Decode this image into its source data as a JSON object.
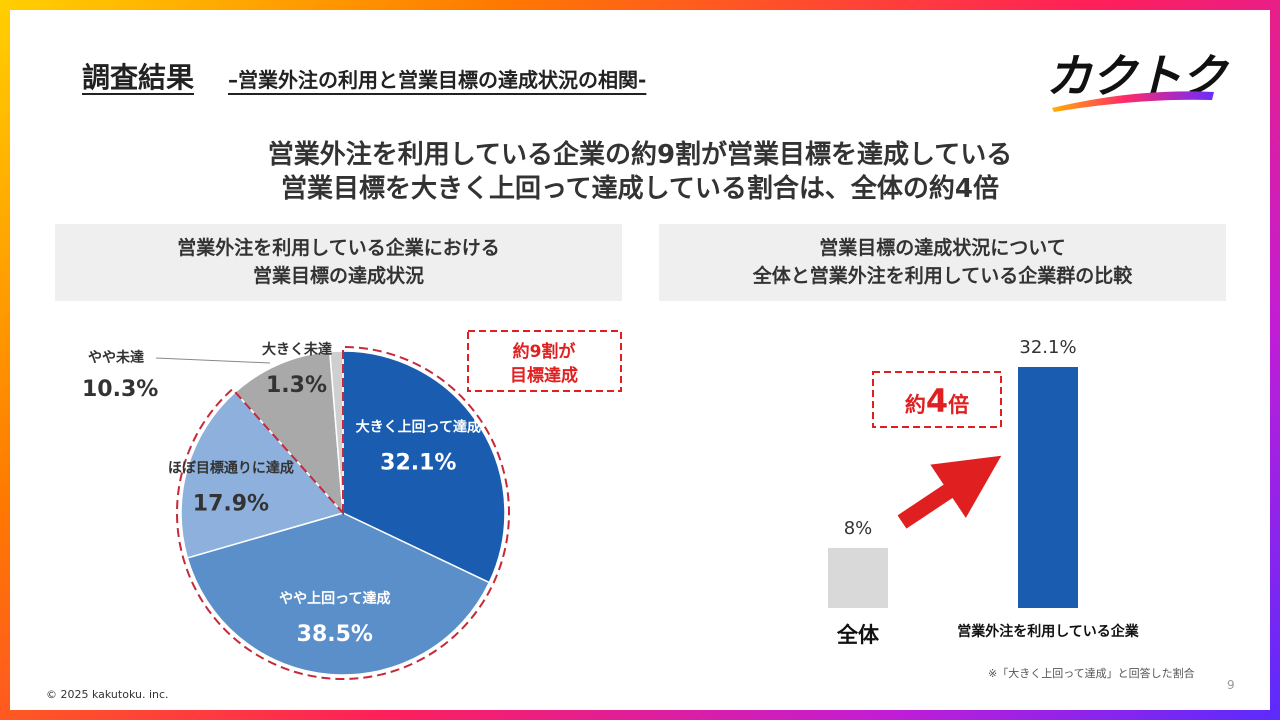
{
  "header": {
    "title": "調査結果",
    "subtitle": "–営業外注の利用と営業目標の達成状況の相関-",
    "logo_text": "カクトク"
  },
  "headline": {
    "line1": "営業外注を利用している企業の約9割が営業目標を達成している",
    "line2": "営業目標を大きく上回って達成している割合は、全体の約4倍"
  },
  "left_panel": {
    "title_line1": "営業外注を利用している企業における",
    "title_line2": "営業目標の達成状況",
    "callout_line1": "約9割が",
    "callout_line2": "目標達成"
  },
  "right_panel": {
    "title_line1": "営業目標の達成状況について",
    "title_line2": "全体と営業外注を利用している企業群の比較",
    "multiplier_prefix": "約",
    "multiplier_number": "4",
    "multiplier_suffix": "倍",
    "footnote": "※「大きく上回って達成」と回答した割合"
  },
  "chart_data": [
    {
      "type": "pie",
      "title": "",
      "slices": [
        {
          "label": "大きく上回って達成",
          "value": 32.1,
          "value_label": "32.1%",
          "color": "#1a5cb0"
        },
        {
          "label": "やや上回って達成",
          "value": 38.5,
          "value_label": "38.5%",
          "color": "#5b8fca"
        },
        {
          "label": "ほぼ目標通りに達成",
          "value": 17.9,
          "value_label": "17.9%",
          "color": "#8eb0dc"
        },
        {
          "label": "やや未達",
          "value": 10.3,
          "value_label": "10.3%",
          "color": "#a9a9a9"
        },
        {
          "label": "大きく未達",
          "value": 1.3,
          "value_label": "1.3%",
          "color": "#cfcfcf"
        }
      ],
      "highlighted_group": [
        "大きく上回って達成",
        "やや上回って達成",
        "ほぼ目標通りに達成"
      ]
    },
    {
      "type": "bar",
      "title": "",
      "categories": [
        "全体",
        "営業外注を利用している企業"
      ],
      "values": [
        8,
        32.1
      ],
      "value_labels": [
        "8%",
        "32.1%"
      ],
      "colors": [
        "#d9d9d9",
        "#1a5cb0"
      ],
      "ylim": [
        0,
        32.1
      ]
    }
  ],
  "colors": {
    "accent_red": "#e02020",
    "text_dark": "#333333",
    "panel_bg": "#efefef"
  },
  "footer": {
    "copyright": "© 2025 kakutoku. inc.",
    "page_number": "9"
  }
}
